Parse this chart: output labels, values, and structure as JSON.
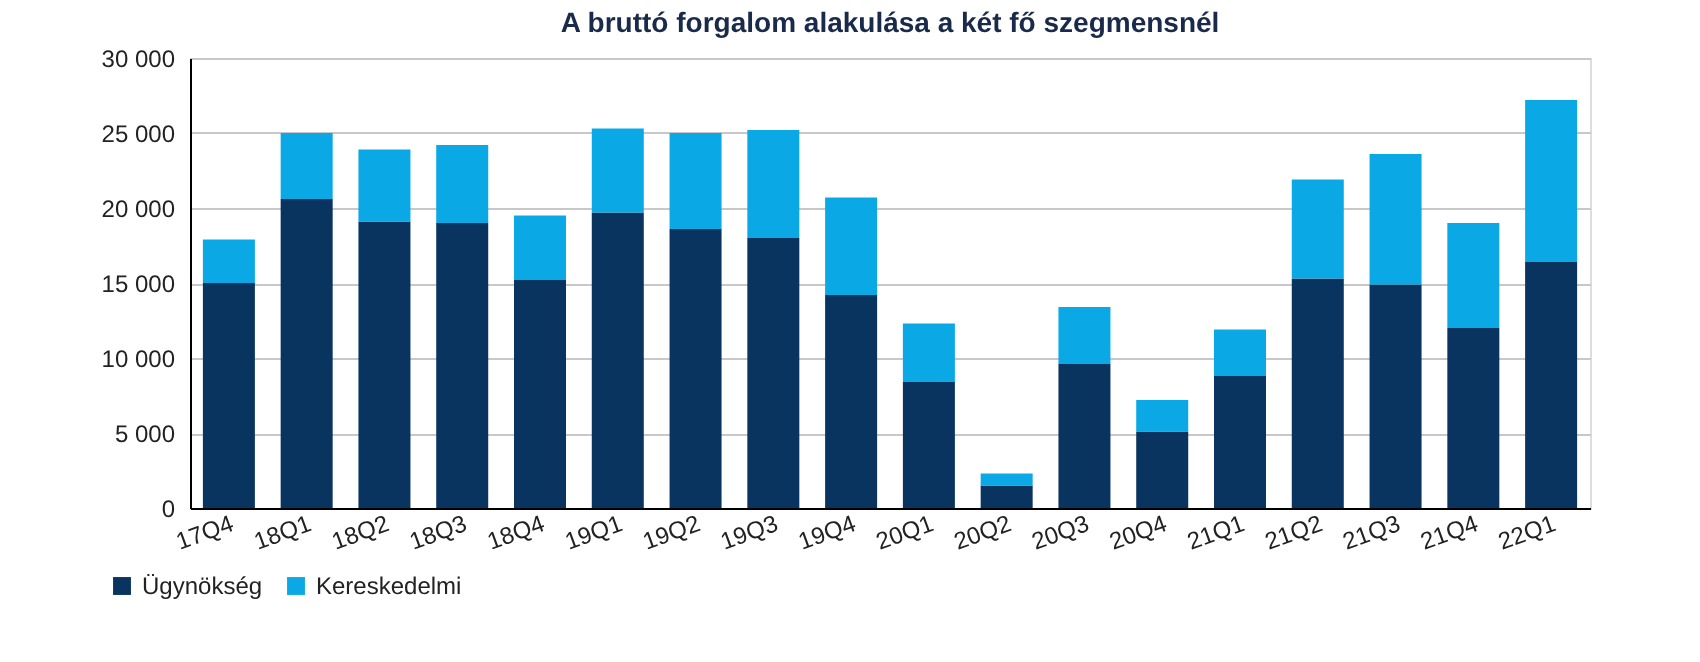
{
  "chart_data": {
    "type": "bar",
    "title": "A bruttó forgalom alakulása a két fő szegmensnél",
    "stacked": true,
    "categories": [
      "17Q4",
      "18Q1",
      "18Q2",
      "18Q3",
      "18Q4",
      "19Q1",
      "19Q2",
      "19Q3",
      "19Q4",
      "20Q1",
      "20Q2",
      "20Q3",
      "20Q4",
      "21Q1",
      "21Q2",
      "21Q3",
      "21Q4",
      "22Q1"
    ],
    "series": [
      {
        "name": "Ügynökség",
        "color": "#08345f",
        "values": [
          15000,
          20600,
          19100,
          19000,
          15200,
          19700,
          18600,
          18000,
          14200,
          8400,
          1500,
          9600,
          5100,
          8800,
          15300,
          14900,
          12000,
          16400
        ]
      },
      {
        "name": "Kereskedelmi",
        "color": "#0aa9e6",
        "values": [
          2900,
          4400,
          4800,
          5200,
          4300,
          5600,
          6400,
          7200,
          6500,
          3900,
          800,
          3800,
          2100,
          3100,
          6600,
          8700,
          7000,
          10800
        ]
      }
    ],
    "ylim": [
      0,
      30000
    ],
    "yticks": [
      {
        "value": 0,
        "label": "0"
      },
      {
        "value": 5000,
        "label": "5 000"
      },
      {
        "value": 10000,
        "label": "10 000"
      },
      {
        "value": 15000,
        "label": "15 000"
      },
      {
        "value": 20000,
        "label": "20 000"
      },
      {
        "value": 25000,
        "label": "25 000"
      },
      {
        "value": 30000,
        "label": "30 000"
      }
    ],
    "grid": "y",
    "legend": "bottom left"
  }
}
